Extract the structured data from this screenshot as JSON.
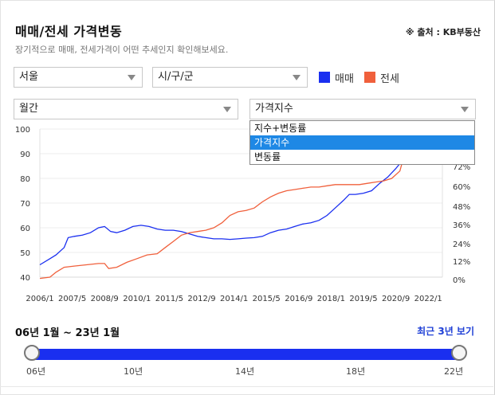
{
  "header": {
    "title": "매매/전세 가격변동",
    "source": "※ 출처 : KB부동산",
    "subtitle": "장기적으로 매매, 전세가격이 어떤 추세인지 확인해보세요."
  },
  "filters": {
    "region": "서울",
    "district": "시/구/군",
    "period": "월간",
    "metric": "가격지수"
  },
  "legend": [
    {
      "name": "매매",
      "color": "#1a2ff0"
    },
    {
      "name": "전세",
      "color": "#f0603c"
    }
  ],
  "dropdown": {
    "options": [
      "지수+변동률",
      "가격지수",
      "변동률"
    ],
    "selected_index": 1
  },
  "chart_data": {
    "type": "line",
    "x_ticks": [
      "2006/1",
      "2007/5",
      "2008/9",
      "2010/1",
      "2011/5",
      "2012/9",
      "2014/1",
      "2015/5",
      "2016/9",
      "2018/1",
      "2019/5",
      "2020/9",
      "2022/1"
    ],
    "y_ticks": [
      "100",
      "90",
      "80",
      "70",
      "60",
      "50",
      "40"
    ],
    "ylim": [
      40,
      100
    ],
    "y2_ticks": [
      "72%",
      "60%",
      "48%",
      "36%",
      "24%",
      "12%",
      "0%"
    ],
    "series": [
      {
        "name": "매매",
        "x": [
          "2006/1",
          "2006/6",
          "2006/9",
          "2007/1",
          "2007/3",
          "2007/6",
          "2007/10",
          "2008/2",
          "2008/6",
          "2008/9",
          "2008/12",
          "2009/3",
          "2009/7",
          "2009/11",
          "2010/3",
          "2010/7",
          "2010/11",
          "2011/3",
          "2011/7",
          "2011/11",
          "2012/3",
          "2012/7",
          "2012/11",
          "2013/3",
          "2013/7",
          "2013/11",
          "2014/3",
          "2014/7",
          "2014/11",
          "2015/3",
          "2015/7",
          "2015/11",
          "2016/3",
          "2016/7",
          "2016/11",
          "2017/3",
          "2017/7",
          "2017/11",
          "2018/3",
          "2018/7",
          "2018/10",
          "2019/1",
          "2019/5",
          "2019/9",
          "2020/1",
          "2020/5",
          "2020/9",
          "2020/12"
        ],
        "values": [
          45,
          47.5,
          49,
          52,
          56,
          56.5,
          57,
          58,
          60,
          60.5,
          58.5,
          58,
          59,
          60.5,
          61,
          60.5,
          59.5,
          59,
          59,
          58.5,
          57.5,
          56.5,
          56,
          55.5,
          55.5,
          55.3,
          55.5,
          55.8,
          56,
          56.5,
          58,
          59,
          59.5,
          60.5,
          61.5,
          62,
          63,
          65,
          68,
          71,
          73.5,
          73.5,
          74,
          75,
          78,
          80.5,
          84,
          87
        ]
      },
      {
        "name": "전세",
        "x": [
          "2006/1",
          "2006/6",
          "2006/9",
          "2007/1",
          "2007/6",
          "2007/12",
          "2008/6",
          "2008/9",
          "2008/11",
          "2009/3",
          "2009/8",
          "2010/1",
          "2010/6",
          "2010/11",
          "2011/3",
          "2011/7",
          "2011/11",
          "2012/3",
          "2012/7",
          "2012/11",
          "2013/3",
          "2013/7",
          "2013/11",
          "2014/3",
          "2014/7",
          "2014/11",
          "2015/3",
          "2015/7",
          "2015/11",
          "2016/3",
          "2016/7",
          "2016/11",
          "2017/3",
          "2017/7",
          "2017/11",
          "2018/3",
          "2018/7",
          "2018/11",
          "2019/3",
          "2019/7",
          "2019/11",
          "2020/3",
          "2020/7",
          "2020/11",
          "2020/12"
        ],
        "values": [
          39.5,
          40,
          42,
          44,
          44.5,
          45,
          45.5,
          45.5,
          43.5,
          44,
          46,
          47.5,
          49,
          49.5,
          52,
          54.5,
          57,
          58,
          58.5,
          59,
          60,
          62,
          65,
          66.5,
          67,
          68,
          70.5,
          72.5,
          74,
          75,
          75.5,
          76,
          76.5,
          76.5,
          77,
          77.5,
          77.5,
          77.5,
          77.5,
          78,
          78.5,
          79,
          80,
          83,
          86
        ]
      }
    ]
  },
  "range": {
    "label": "06년 1월 ~ 23년 1월",
    "recent_button": "최근 3년 보기",
    "ticks": [
      "06년",
      "10년",
      "14년",
      "18년",
      "22년"
    ]
  }
}
